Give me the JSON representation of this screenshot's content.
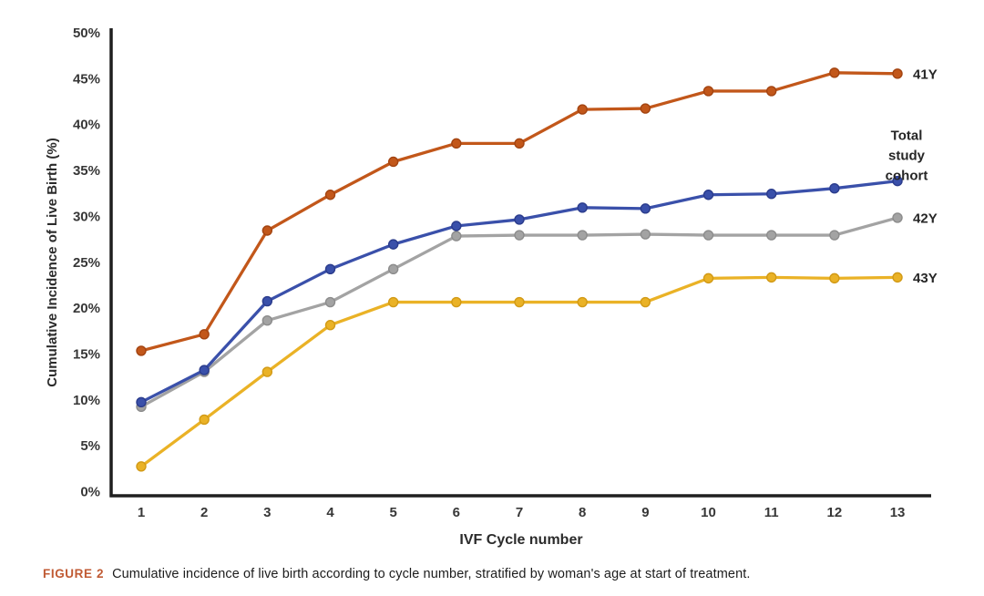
{
  "figure": {
    "caption_label": "FIGURE 2",
    "caption_text": "Cumulative incidence of live birth according to cycle number, stratified by woman's age at start of treatment."
  },
  "colors": {
    "caption_label_color": "#c05a33",
    "axis_line_color": "#1f1f1f",
    "tick_text_color": "#373737"
  },
  "chart_data": {
    "type": "line",
    "title": "",
    "xlabel": "IVF Cycle number",
    "ylabel": "Cumulative Incidence of Live Birth (%)",
    "x": [
      1,
      2,
      3,
      4,
      5,
      6,
      7,
      8,
      9,
      10,
      11,
      12,
      13
    ],
    "xlim": [
      1,
      13
    ],
    "ylim": [
      0,
      50
    ],
    "grid": false,
    "legend_position": "labels at right end of each line",
    "yticks": [
      {
        "value": 0,
        "label": "0%"
      },
      {
        "value": 5,
        "label": "5%"
      },
      {
        "value": 10,
        "label": "10%"
      },
      {
        "value": 15,
        "label": "15%"
      },
      {
        "value": 20,
        "label": "20%"
      },
      {
        "value": 25,
        "label": "25%"
      },
      {
        "value": 30,
        "label": "30%"
      },
      {
        "value": 35,
        "label": "35%"
      },
      {
        "value": 40,
        "label": "40%"
      },
      {
        "value": 45,
        "label": "45%"
      },
      {
        "value": 50,
        "label": "50%"
      }
    ],
    "series": [
      {
        "name": "41Y",
        "label_lines": [
          "41Y"
        ],
        "color": "#c2571a",
        "marker_edge": "#a34411",
        "values": [
          15.3,
          17.1,
          28.4,
          32.3,
          35.9,
          37.9,
          37.9,
          41.6,
          41.7,
          43.6,
          43.6,
          45.6,
          45.5
        ]
      },
      {
        "name": "Total study cohort",
        "label_lines": [
          "Total",
          "study",
          "cohort"
        ],
        "color": "#3a50aa",
        "marker_edge": "#2b3c8c",
        "values": [
          9.7,
          13.2,
          20.7,
          24.2,
          26.9,
          28.9,
          29.6,
          30.9,
          30.8,
          32.3,
          32.4,
          33.0,
          33.8
        ]
      },
      {
        "name": "42Y",
        "label_lines": [
          "42Y"
        ],
        "color": "#a3a3a3",
        "marker_edge": "#8c8c8c",
        "values": [
          9.2,
          13.0,
          18.6,
          20.6,
          24.2,
          27.8,
          27.9,
          27.9,
          28.0,
          27.9,
          27.9,
          27.9,
          29.8
        ]
      },
      {
        "name": "43Y",
        "label_lines": [
          "43Y"
        ],
        "color": "#eab226",
        "marker_edge": "#d29a16",
        "values": [
          2.7,
          7.8,
          13.0,
          18.1,
          20.6,
          20.6,
          20.6,
          20.6,
          20.6,
          23.2,
          23.3,
          23.2,
          23.3
        ]
      }
    ]
  }
}
